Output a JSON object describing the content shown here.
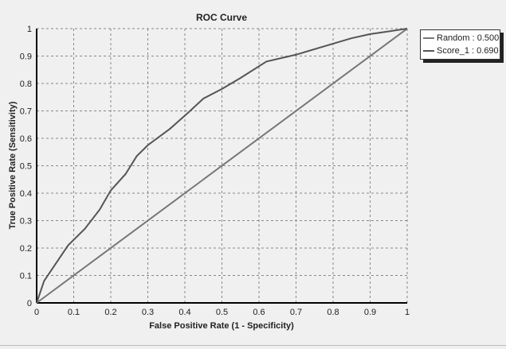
{
  "chart_data": {
    "type": "line",
    "title": "ROC Curve",
    "xlabel": "False Positive Rate (1 - Specificity)",
    "ylabel": "True Positive Rate (Sensitivity)",
    "xlim": [
      0,
      1
    ],
    "ylim": [
      0,
      1
    ],
    "xticks": [
      "0",
      "0.1",
      "0.2",
      "0.3",
      "0.4",
      "0.5",
      "0.6",
      "0.7",
      "0.8",
      "0.9",
      "1"
    ],
    "yticks": [
      "0",
      "0.1",
      "0.2",
      "0.3",
      "0.4",
      "0.5",
      "0.6",
      "0.7",
      "0.8",
      "0.9",
      "1"
    ],
    "grid": true,
    "legend_position": "top-right",
    "series": [
      {
        "name": "Random : 0.500",
        "color": "#777777",
        "x": [
          0,
          1
        ],
        "y": [
          0,
          1
        ]
      },
      {
        "name": "Score_1 : 0.690",
        "color": "#555555",
        "x": [
          0,
          0.02,
          0.05,
          0.085,
          0.13,
          0.17,
          0.2,
          0.24,
          0.27,
          0.3,
          0.36,
          0.41,
          0.45,
          0.5,
          0.55,
          0.62,
          0.7,
          0.8,
          0.85,
          0.9,
          0.95,
          1
        ],
        "y": [
          0,
          0.08,
          0.14,
          0.21,
          0.27,
          0.34,
          0.41,
          0.47,
          0.535,
          0.575,
          0.635,
          0.695,
          0.745,
          0.78,
          0.82,
          0.88,
          0.905,
          0.945,
          0.965,
          0.98,
          0.99,
          1
        ]
      }
    ]
  }
}
